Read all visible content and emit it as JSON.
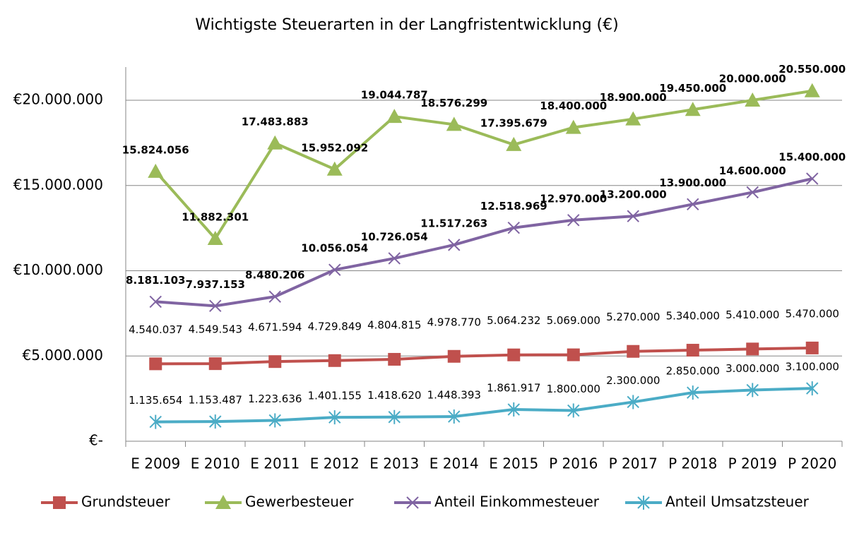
{
  "chart_data": {
    "type": "line",
    "title": "Wichtigste Steuerarten in der Langfristentwicklung (€)",
    "categories": [
      "E 2009",
      "E 2010",
      "E 2011",
      "E 2012",
      "E 2013",
      "E 2014",
      "E 2015",
      "P 2016",
      "P 2017",
      "P 2018",
      "P 2019",
      "P 2020"
    ],
    "ylim": [
      0,
      22000000
    ],
    "yticks": [
      {
        "value": 0,
        "label": "€-"
      },
      {
        "value": 5000000,
        "label": "€5.000.000"
      },
      {
        "value": 10000000,
        "label": "€10.000.000"
      },
      {
        "value": 15000000,
        "label": "€15.000.000"
      },
      {
        "value": 20000000,
        "label": "€20.000.000"
      }
    ],
    "grid": true,
    "legend": "bottom",
    "series": [
      {
        "name": "Grundsteuer",
        "color": "#c0504d",
        "marker": "square",
        "values": [
          4540037,
          4549543,
          4671594,
          4729849,
          4804815,
          4978770,
          5064232,
          5069000,
          5270000,
          5340000,
          5410000,
          5470000
        ],
        "value_labels": [
          "4.540.037",
          "4.549.543",
          "4.671.594",
          "4.729.849",
          "4.804.815",
          "4.978.770",
          "5.064.232",
          "5.069.000",
          "5.270.000",
          "5.340.000",
          "5.410.000",
          "5.470.000"
        ]
      },
      {
        "name": "Gewerbesteuer",
        "color": "#9bbb59",
        "marker": "triangle",
        "values": [
          15824056,
          11882301,
          17483883,
          15952092,
          19044787,
          18576299,
          17395679,
          18400000,
          18900000,
          19450000,
          20000000,
          20550000
        ],
        "value_labels": [
          "15.824.056",
          "11.882.301",
          "17.483.883",
          "15.952.092",
          "19.044.787",
          "18.576.299",
          "17.395.679",
          "18.400.000",
          "18.900.000",
          "19.450.000",
          "20.000.000",
          "20.550.000"
        ]
      },
      {
        "name": "Anteil Einkommesteuer",
        "color": "#8064a2",
        "marker": "x",
        "values": [
          8181103,
          7937153,
          8480206,
          10056054,
          10726054,
          11517263,
          12518969,
          12970000,
          13200000,
          13900000,
          14600000,
          15400000
        ],
        "value_labels": [
          "8.181.103",
          "7.937.153",
          "8.480.206",
          "10.056.054",
          "10.726.054",
          "11.517.263",
          "12.518.969",
          "12.970.000",
          "13.200.000",
          "13.900.000",
          "14.600.000",
          "15.400.000"
        ]
      },
      {
        "name": "Anteil Umsatzsteuer",
        "color": "#4bacc6",
        "marker": "star",
        "values": [
          1135654,
          1153487,
          1223636,
          1401155,
          1418620,
          1448393,
          1861917,
          1800000,
          2300000,
          2850000,
          3000000,
          3100000
        ],
        "value_labels": [
          "1.135.654",
          "1.153.487",
          "1.223.636",
          "1.401.155",
          "1.418.620",
          "1.448.393",
          "1.861.917",
          "1.800.000",
          "2.300.000",
          "2.850.000",
          "3.000.000",
          "3.100.000"
        ]
      }
    ]
  }
}
